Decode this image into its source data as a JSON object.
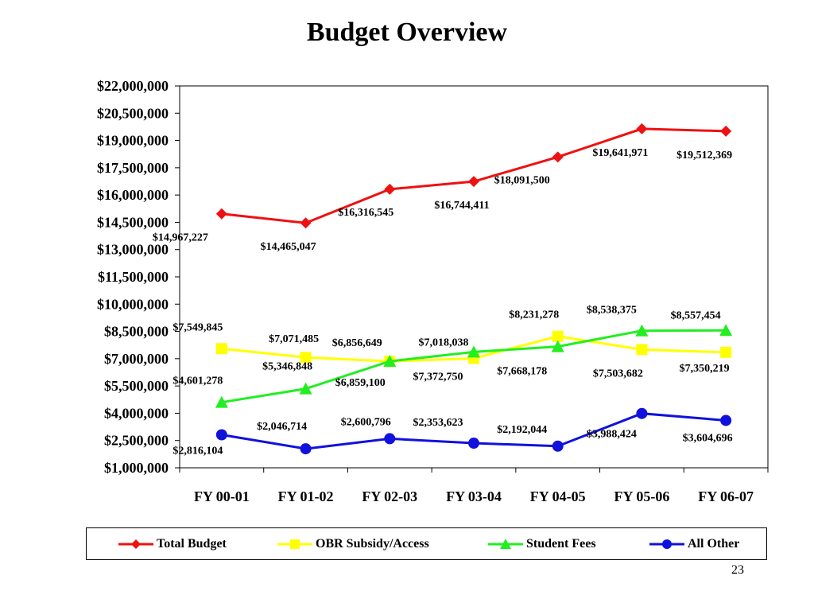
{
  "page": {
    "title": "Budget Overview",
    "page_number": "23"
  },
  "chart_data": {
    "type": "line",
    "title": "",
    "xlabel": "",
    "ylabel": "",
    "ylim": [
      1000000,
      22000000
    ],
    "y_ticks": [
      1000000,
      2500000,
      4000000,
      5500000,
      7000000,
      8500000,
      10000000,
      11500000,
      13000000,
      14500000,
      16000000,
      17500000,
      19000000,
      20500000,
      22000000
    ],
    "y_tick_labels": [
      "$1,000,000",
      "$2,500,000",
      "$4,000,000",
      "$5,500,000",
      "$7,000,000",
      "$8,500,000",
      "$10,000,000",
      "$11,500,000",
      "$13,000,000",
      "$14,500,000",
      "$16,000,000",
      "$17,500,000",
      "$19,000,000",
      "$20,500,000",
      "$22,000,000"
    ],
    "categories": [
      "FY 00-01",
      "FY 01-02",
      "FY 02-03",
      "FY 03-04",
      "FY 04-05",
      "FY 05-06",
      "FY 06-07"
    ],
    "grid": false,
    "legend_position": "bottom",
    "series": [
      {
        "name": "Total Budget",
        "color": "#ee1111",
        "marker": "diamond",
        "values": [
          14967227,
          14465047,
          16316545,
          16744411,
          18091500,
          19641971,
          19512369
        ],
        "labels": [
          "$14,967,227",
          "$14,465,047",
          "$16,316,545",
          "$16,744,411",
          "$18,091,500",
          "$19,641,971",
          "$19,512,369"
        ]
      },
      {
        "name": "OBR Subsidy/Access",
        "color": "#ffff00",
        "marker": "square",
        "values": [
          7549845,
          7071485,
          6856649,
          7018038,
          8231278,
          7503682,
          7350219
        ],
        "labels": [
          "$7,549,845",
          "$7,071,485",
          "$6,856,649",
          "$7,018,038",
          "$8,231,278",
          "$7,503,682",
          "$7,350,219"
        ]
      },
      {
        "name": "Student Fees",
        "color": "#22ee22",
        "marker": "triangle",
        "values": [
          4601278,
          5346848,
          6859100,
          7372750,
          7668178,
          8538375,
          8557454
        ],
        "labels": [
          "$4,601,278",
          "$5,346,848",
          "$6,859,100",
          "$7,372,750",
          "$7,668,178",
          "$8,538,375",
          "$8,557,454"
        ]
      },
      {
        "name": "All Other",
        "color": "#1111dd",
        "marker": "circle",
        "values": [
          2816104,
          2046714,
          2600796,
          2353623,
          2192044,
          3988424,
          3604696
        ],
        "labels": [
          "$2,816,104",
          "$2,046,714",
          "$2,600,796",
          "$2,353,623",
          "$2,192,044",
          "$3,988,424",
          "$3,604,696"
        ]
      }
    ]
  }
}
